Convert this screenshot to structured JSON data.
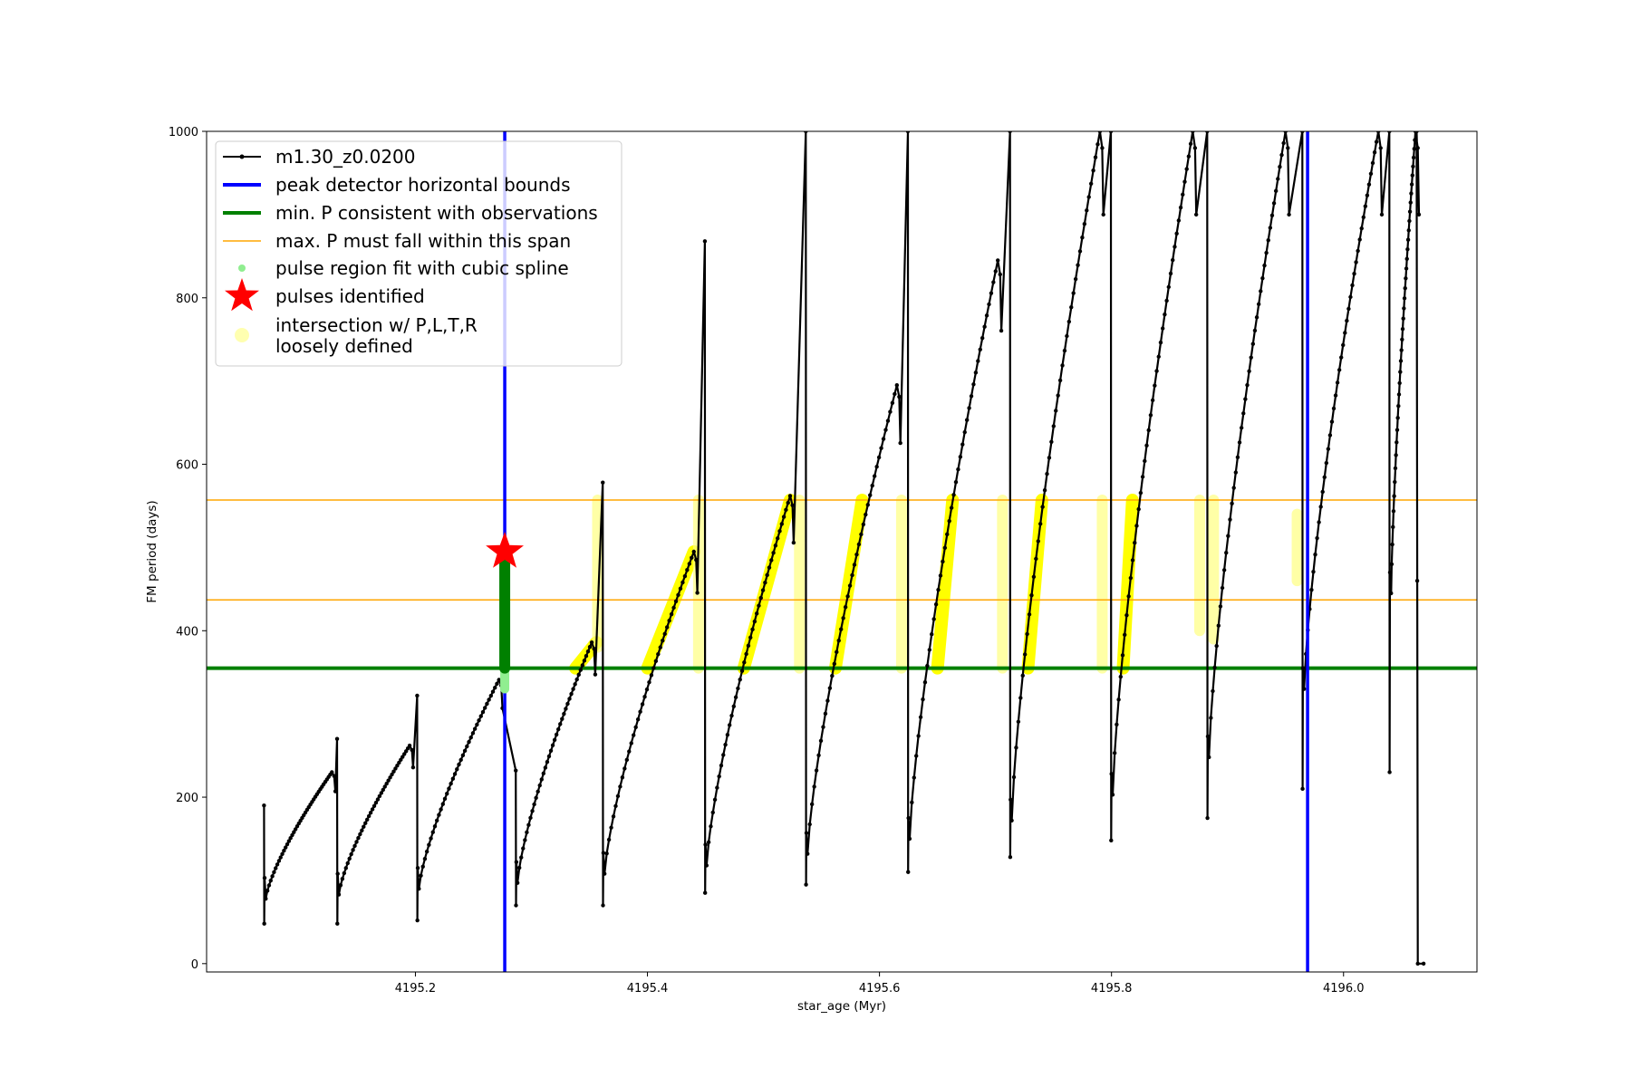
{
  "chart_data": {
    "type": "line",
    "xlabel": "star_age (Myr)",
    "ylabel": "FM period (days)",
    "xlim": [
      4195.02,
      4196.115
    ],
    "ylim": [
      -10,
      1000
    ],
    "xticks": [
      4195.2,
      4195.4,
      4195.6,
      4195.8,
      4196.0
    ],
    "xtick_labels": [
      "4195.2",
      "4195.4",
      "4195.6",
      "4195.8",
      "4196.0"
    ],
    "yticks": [
      0,
      200,
      400,
      600,
      800,
      1000
    ],
    "ytick_labels": [
      "0",
      "200",
      "400",
      "600",
      "800",
      "1000"
    ],
    "grid": false,
    "legend_position": "top-left",
    "legend": [
      {
        "label": "m1.30_z0.0200",
        "kind": "line-dot",
        "color": "#000000"
      },
      {
        "label": "peak detector horizontal bounds",
        "kind": "line",
        "color": "#0000ff"
      },
      {
        "label": "min. P consistent with observations",
        "kind": "line",
        "color": "#008000"
      },
      {
        "label": "max. P must fall within this span",
        "kind": "thin-line",
        "color": "#ffa500"
      },
      {
        "label": "pulse region fit with cubic spline",
        "kind": "dot",
        "color": "#90ee90"
      },
      {
        "label": "pulses identified",
        "kind": "star",
        "color": "#ff0000"
      },
      {
        "label_lines": [
          "intersection w/ P,L,T,R",
          "loosely defined"
        ],
        "kind": "big-dot",
        "color": "#ffffb0"
      }
    ],
    "reference_lines": {
      "vertical_blue": [
        4195.277,
        4195.969
      ],
      "horizontal_green": 355,
      "horizontal_orange": [
        437,
        557
      ]
    },
    "star_marker": {
      "x": 4195.277,
      "y": 495
    },
    "green_segment": {
      "x": 4195.277,
      "y_range": [
        355,
        495
      ]
    },
    "lightgreen_segment": {
      "x": 4195.277,
      "y_range": [
        330,
        500
      ]
    },
    "series": [
      {
        "name": "m1.30_z0.0200",
        "color": "#000000",
        "cycles": [
          {
            "x_start": 4195.07,
            "x_peak": 4195.128,
            "y_start": 78,
            "y_peak": 230,
            "spike_min": 48,
            "spike_max": 190
          },
          {
            "x_start": 4195.133,
            "x_peak": 4195.195,
            "y_start": 83,
            "y_peak": 262,
            "spike_min": 48,
            "spike_max": 270
          },
          {
            "x_start": 4195.202,
            "x_peak": 4195.272,
            "y_start": 90,
            "y_peak": 341,
            "spike_min": 52,
            "spike_max": 322
          },
          {
            "x_start": 4195.287,
            "x_peak": 4195.352,
            "y_start": 97,
            "y_peak": 386,
            "spike_min": 70,
            "spike_max": 232
          },
          {
            "x_start": 4195.362,
            "x_peak": 4195.44,
            "y_start": 108,
            "y_peak": 495,
            "spike_min": 70,
            "spike_max": 578
          },
          {
            "x_start": 4195.45,
            "x_peak": 4195.523,
            "y_start": 118,
            "y_peak": 562,
            "spike_min": 85,
            "spike_max": 868
          },
          {
            "x_start": 4195.537,
            "x_peak": 4195.615,
            "y_start": 132,
            "y_peak": 695,
            "spike_min": 95,
            "spike_max": 1000
          },
          {
            "x_start": 4195.625,
            "x_peak": 4195.702,
            "y_start": 150,
            "y_peak": 845,
            "spike_min": 110,
            "spike_max": 1000
          },
          {
            "x_start": 4195.713,
            "x_peak": 4195.79,
            "y_start": 172,
            "y_peak": 1000,
            "spike_min": 128,
            "spike_max": 1000
          },
          {
            "x_start": 4195.8,
            "x_peak": 4195.87,
            "y_start": 203,
            "y_peak": 1000,
            "spike_min": 148,
            "spike_max": 1000
          },
          {
            "x_start": 4195.883,
            "x_peak": 4195.95,
            "y_start": 248,
            "y_peak": 1000,
            "spike_min": 175,
            "spike_max": 1000
          },
          {
            "x_start": 4195.965,
            "x_peak": 4196.03,
            "y_start": 330,
            "y_peak": 1000,
            "spike_min": 210,
            "spike_max": 1000
          },
          {
            "x_start": 4196.04,
            "x_peak": 4196.062,
            "y_start": 445,
            "y_peak": 1000,
            "spike_min": 230,
            "spike_max": 1000
          }
        ],
        "final_drop": {
          "x": 4196.063,
          "y_end": 0,
          "x_end": 4196.069
        }
      }
    ],
    "yellow_regions": [
      {
        "x0": 4195.338,
        "x1": 4195.356,
        "y0": 355,
        "y1": 386
      },
      {
        "x0": 4195.4,
        "x1": 4195.44,
        "y0": 355,
        "y1": 495
      },
      {
        "x0": 4195.483,
        "x1": 4195.523,
        "y0": 355,
        "y1": 557
      },
      {
        "x0": 4195.562,
        "x1": 4195.585,
        "y0": 355,
        "y1": 557
      },
      {
        "x0": 4195.65,
        "x1": 4195.663,
        "y0": 355,
        "y1": 557
      },
      {
        "x0": 4195.728,
        "x1": 4195.74,
        "y0": 355,
        "y1": 557
      },
      {
        "x0": 4195.81,
        "x1": 4195.818,
        "y0": 355,
        "y1": 557
      }
    ],
    "yellow_faint_spikes": [
      {
        "x": 4195.357,
        "y0": 380,
        "y1": 557
      },
      {
        "x": 4195.444,
        "y0": 355,
        "y1": 557
      },
      {
        "x": 4195.531,
        "y0": 355,
        "y1": 557
      },
      {
        "x": 4195.619,
        "y0": 355,
        "y1": 557
      },
      {
        "x": 4195.706,
        "y0": 355,
        "y1": 557
      },
      {
        "x": 4195.792,
        "y0": 355,
        "y1": 557
      },
      {
        "x": 4195.876,
        "y0": 400,
        "y1": 557
      },
      {
        "x": 4195.888,
        "y0": 390,
        "y1": 557
      },
      {
        "x": 4195.96,
        "y0": 460,
        "y1": 540
      }
    ]
  }
}
